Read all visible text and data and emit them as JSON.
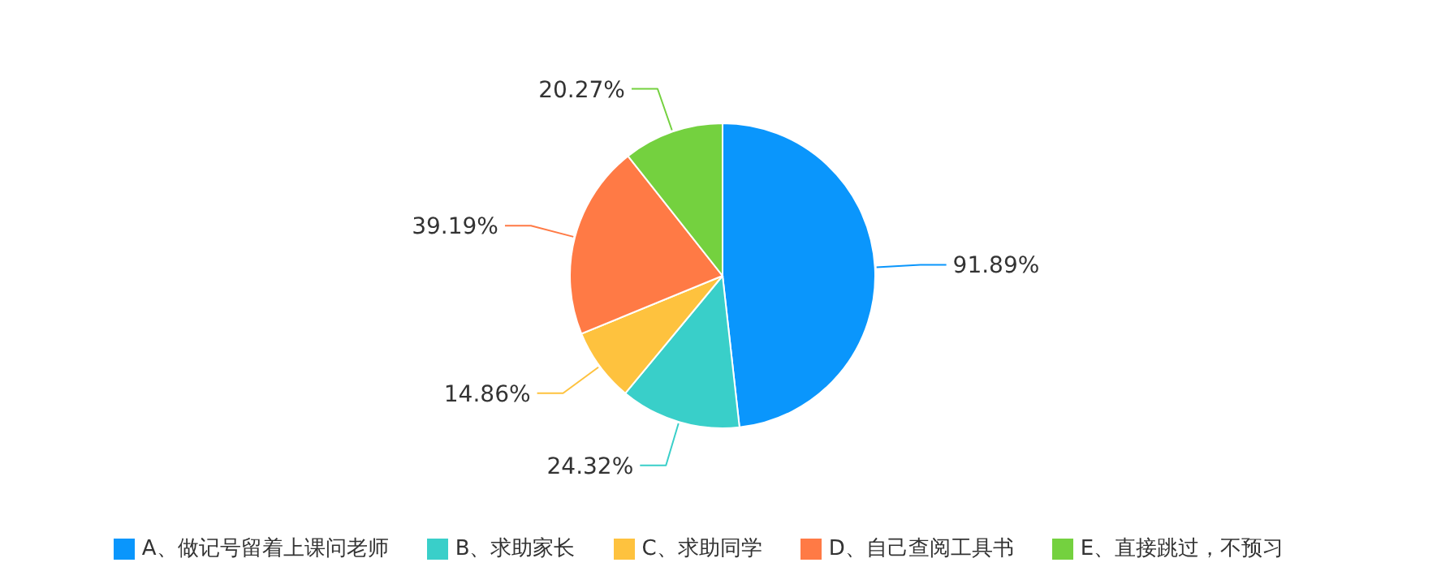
{
  "chart_data": {
    "type": "pie",
    "categories": [
      "A、做记号留着上课问老师",
      "B、求助家长",
      "C、求助同学",
      "D、自己查阅工具书",
      "E、直接跳过，不预习"
    ],
    "values": [
      91.89,
      24.32,
      14.86,
      39.19,
      20.27
    ],
    "value_labels": [
      "91.89%",
      "24.32%",
      "14.86%",
      "39.19%",
      "20.27%"
    ],
    "colors": [
      "#0a96fc",
      "#39cfc9",
      "#fec23e",
      "#ff7a45",
      "#74d13f"
    ],
    "legend": "bottom"
  }
}
